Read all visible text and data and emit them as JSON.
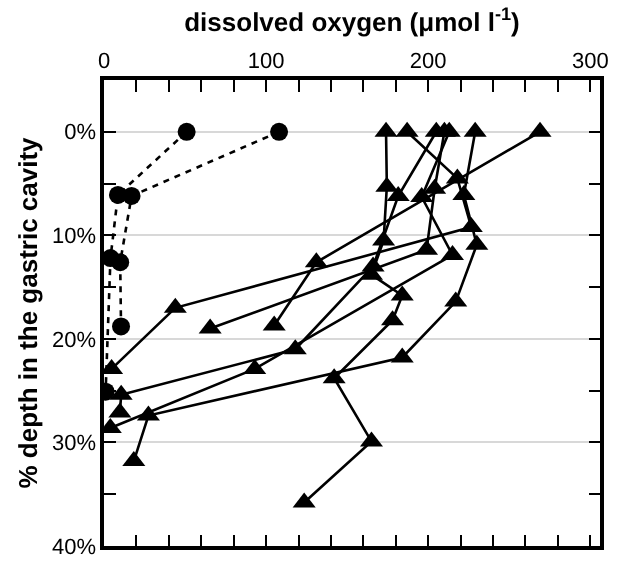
{
  "chart_data": {
    "type": "line",
    "xlabel": "dissolved oxygen (μmol l$^{-1}$)",
    "ylabel": "% depth in the gastric cavity",
    "xlim": [
      0,
      306
    ],
    "xticks": [
      0,
      {
        "value": 20,
        "label": null
      },
      {
        "value": 40,
        "label": null
      },
      {
        "value": 60,
        "label": null
      },
      {
        "value": 80,
        "label": null
      },
      100,
      {
        "value": 120,
        "label": null
      },
      {
        "value": 140,
        "label": null
      },
      {
        "value": 160,
        "label": null
      },
      {
        "value": 180,
        "label": null
      },
      200,
      {
        "value": 220,
        "label": null
      },
      {
        "value": 240,
        "label": null
      },
      {
        "value": 260,
        "label": null
      },
      {
        "value": 280,
        "label": null
      },
      300
    ],
    "ylim": [
      40,
      -5
    ],
    "yticks": [
      {
        "value": 0,
        "label": "0%"
      },
      {
        "value": 5,
        "label": null
      },
      {
        "value": 10,
        "label": "10%"
      },
      {
        "value": 15,
        "label": null
      },
      {
        "value": 20,
        "label": "20%"
      },
      {
        "value": 25,
        "label": null
      },
      {
        "value": 30,
        "label": "30%"
      },
      {
        "value": 35,
        "label": null
      },
      {
        "value": 40,
        "label": "40%"
      }
    ],
    "grid": "y",
    "series": [
      {
        "color": "#000000",
        "marker": "circle",
        "line_style": "dotted",
        "x": [
          108,
          17,
          10,
          10.5
        ],
        "values": [
          0,
          6.2,
          12.6,
          18.8
        ]
      },
      {
        "color": "#000000",
        "marker": "circle",
        "line_style": "dotted",
        "x": [
          51,
          8.6,
          4,
          1
        ],
        "values": [
          0,
          6.1,
          12.2,
          25.1
        ]
      },
      {
        "color": "#000000",
        "marker": "triangle",
        "line_style": "solid",
        "x": [
          269,
          131,
          105
        ],
        "values": [
          0,
          12.6,
          18.7
        ]
      },
      {
        "color": "#000000",
        "marker": "triangle",
        "line_style": "solid",
        "x": [
          174,
          174.5,
          172.5,
          165,
          184,
          178,
          142,
          165,
          123.5
        ],
        "values": [
          0,
          5.3,
          10.5,
          13.8,
          15.8,
          18.2,
          23.8,
          29.9,
          35.8
        ]
      },
      {
        "color": "#000000",
        "marker": "triangle",
        "line_style": "solid",
        "x": [
          187,
          218,
          226.6,
          44,
          4.7
        ],
        "values": [
          0,
          4.5,
          9.2,
          17,
          22.9
        ]
      },
      {
        "color": "#000000",
        "marker": "triangle",
        "line_style": "solid",
        "x": [
          205,
          181.5,
          166,
          118,
          10.6,
          9.8
        ],
        "values": [
          0,
          6.2,
          13,
          21,
          25.4,
          27.1
        ]
      },
      {
        "color": "#000000",
        "marker": "triangle",
        "line_style": "solid",
        "x": [
          210,
          204,
          199,
          65.5
        ],
        "values": [
          0,
          5.5,
          11.4,
          19
        ]
      },
      {
        "color": "#000000",
        "marker": "triangle",
        "line_style": "solid",
        "x": [
          213,
          196,
          215,
          93,
          3.9
        ],
        "values": [
          0,
          6.3,
          11.9,
          22.9,
          28.6
        ]
      },
      {
        "color": "#000000",
        "marker": "triangle",
        "line_style": "solid",
        "x": [
          229,
          222,
          230,
          217,
          184,
          27.4,
          18.4
        ],
        "values": [
          0,
          6.1,
          10.9,
          16.4,
          21.8,
          27.4,
          31.8
        ]
      }
    ]
  }
}
